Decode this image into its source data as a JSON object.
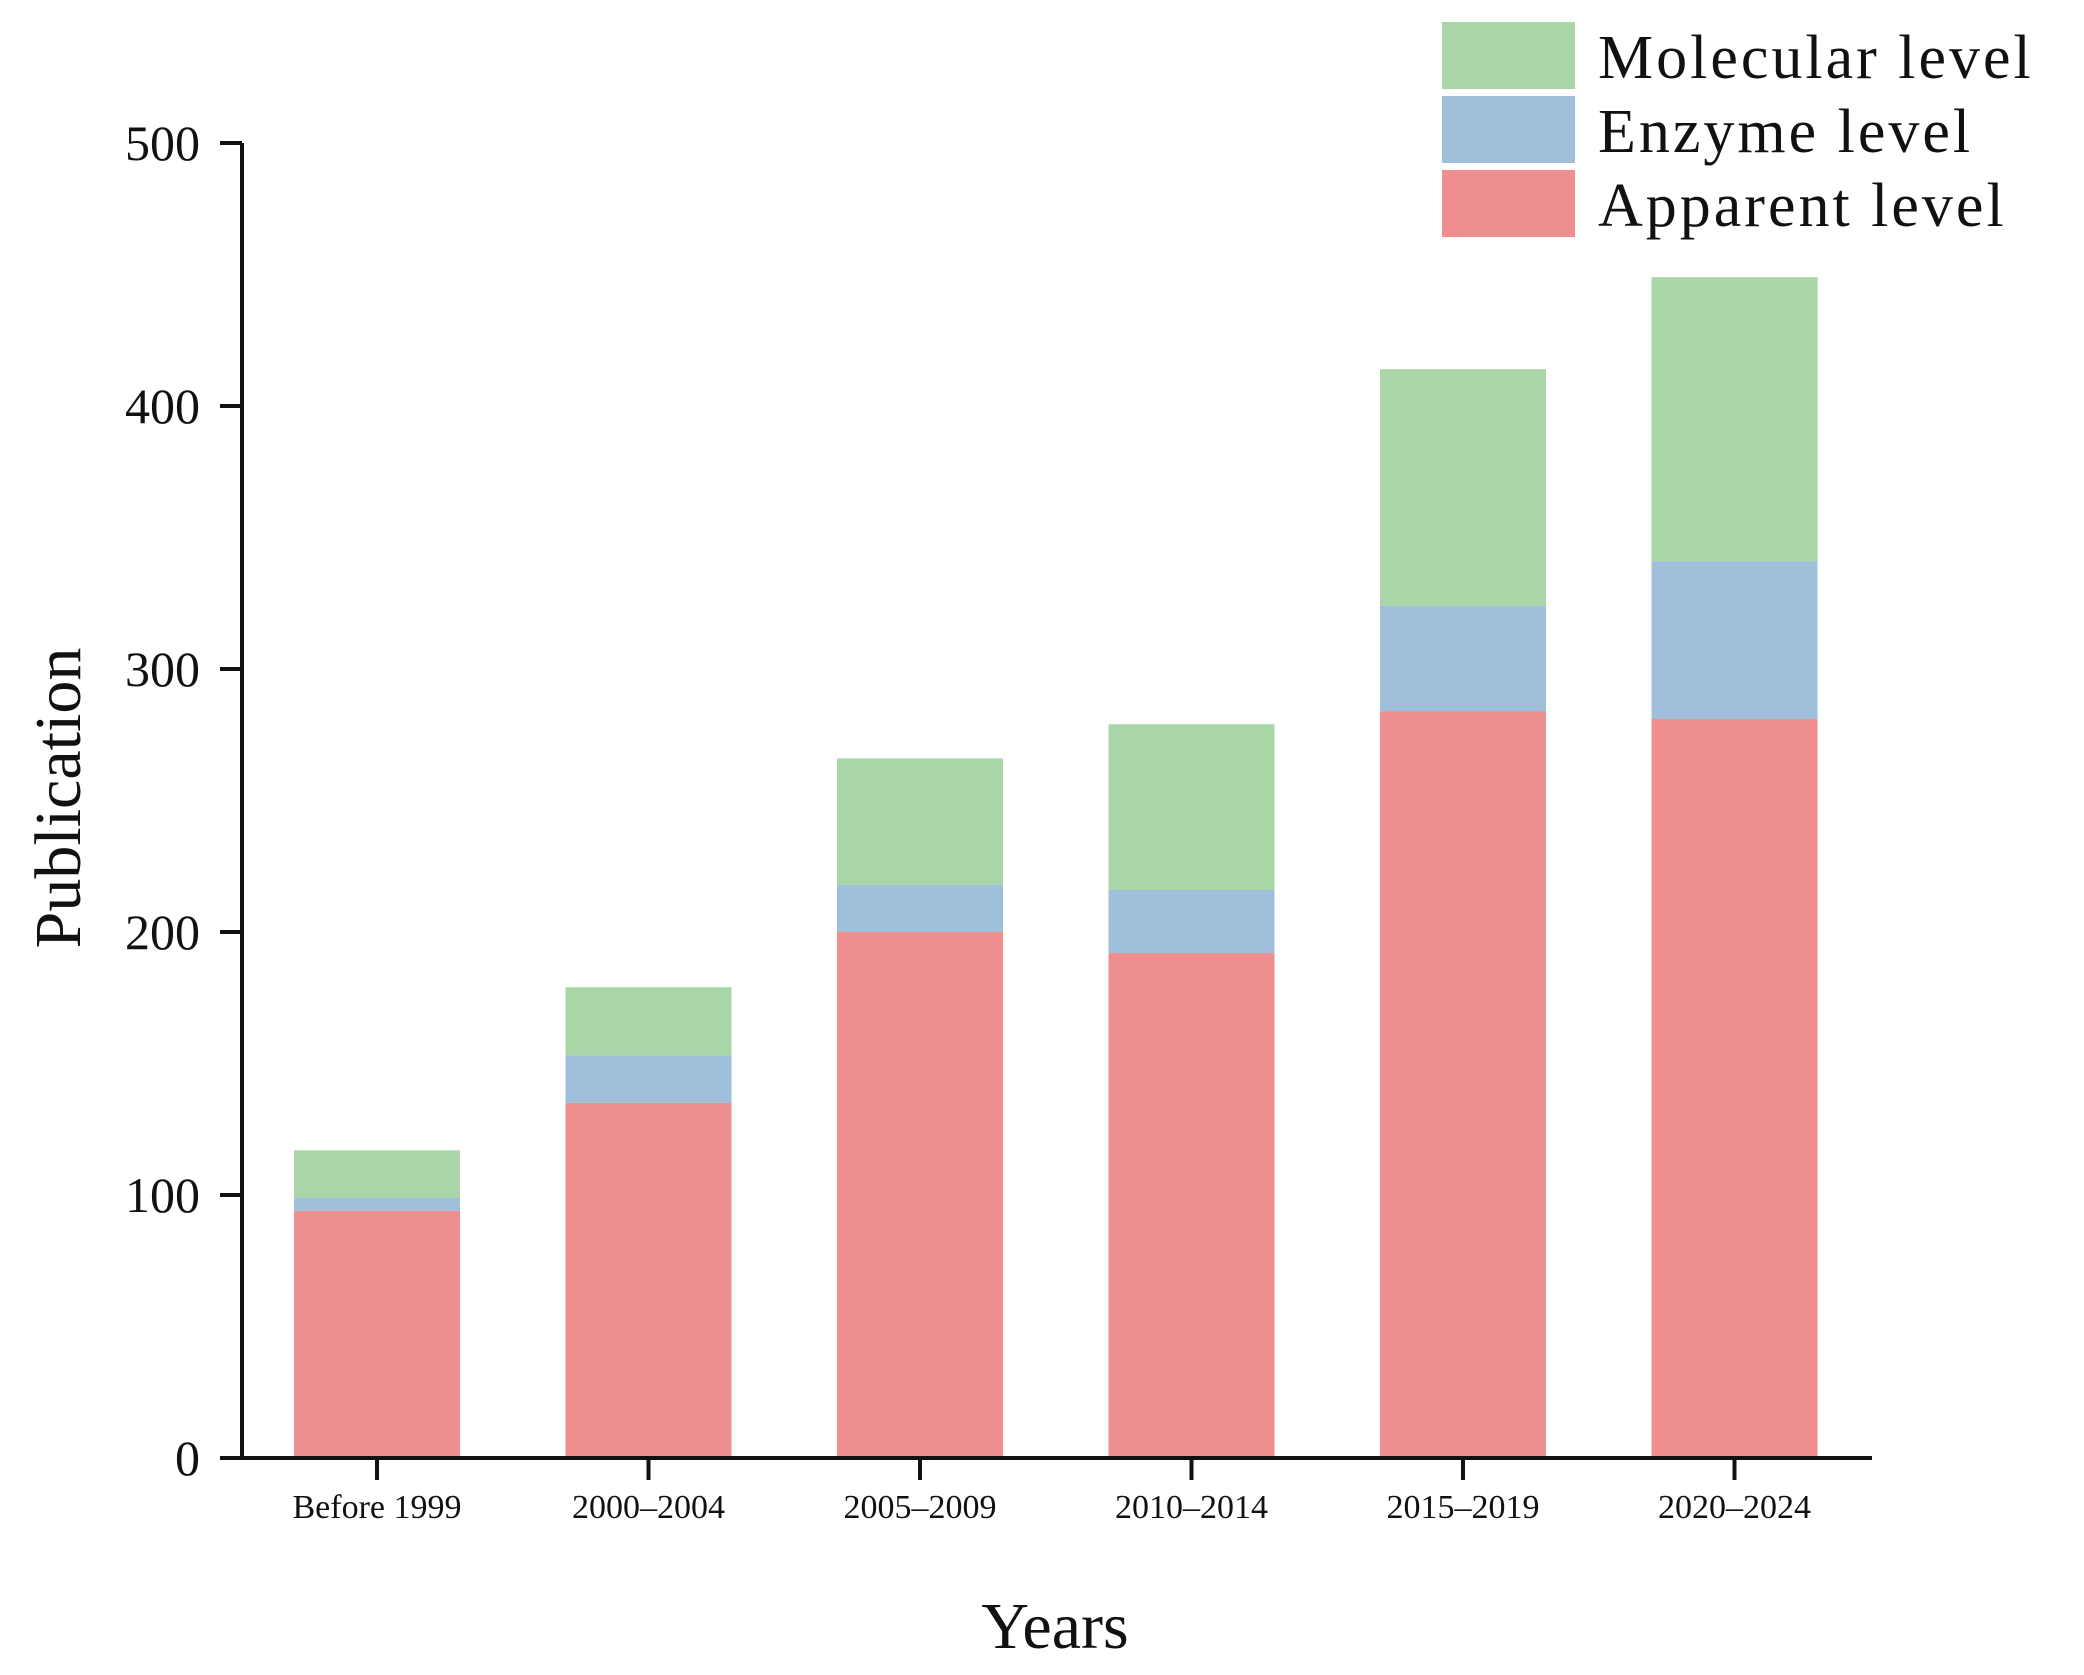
{
  "chart_data": {
    "type": "bar",
    "stacked": true,
    "title": "",
    "xlabel": "Years",
    "ylabel": "Publication",
    "ylim": [
      0,
      500
    ],
    "yticks": [
      0,
      100,
      200,
      300,
      400,
      500
    ],
    "grid": false,
    "legend_position": "top-right",
    "categories": [
      "Before 1999",
      "2000–2004",
      "2005–2009",
      "2010–2014",
      "2015–2019",
      "2020–2024"
    ],
    "series": [
      {
        "name": "Apparent level",
        "color": "#ef8e8e",
        "values": [
          94,
          135,
          200,
          192,
          284,
          281
        ]
      },
      {
        "name": "Enzyme level",
        "color": "#9fbfda",
        "values": [
          5,
          18,
          18,
          24,
          40,
          60
        ]
      },
      {
        "name": "Molecular level",
        "color": "#a8d6a6",
        "values": [
          18,
          26,
          48,
          63,
          90,
          108
        ]
      }
    ],
    "legend_order": [
      "Molecular level",
      "Enzyme level",
      "Apparent level"
    ]
  }
}
